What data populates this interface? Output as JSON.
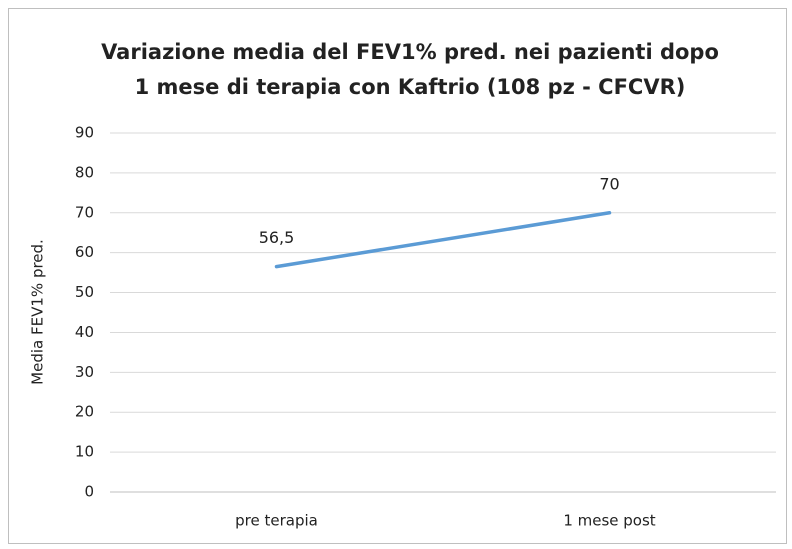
{
  "chart_data": {
    "type": "line",
    "title": [
      "Variazione media del FEV1% pred. nei pazienti dopo",
      "1 mese di terapia con Kaftrio (108 pz - CFCVR)"
    ],
    "y_label": "Media FEV1% pred.",
    "categories": [
      "pre terapia",
      "1 mese post"
    ],
    "series": [
      {
        "name": "Media FEV1% pred.",
        "color": "#5b9bd5",
        "values": [
          56.5,
          70
        ],
        "value_labels": [
          "56,5",
          "70"
        ]
      }
    ],
    "ylim": [
      0,
      90
    ],
    "yticks": [
      0,
      10,
      20,
      30,
      40,
      50,
      60,
      70,
      80,
      90
    ],
    "grid": true
  }
}
